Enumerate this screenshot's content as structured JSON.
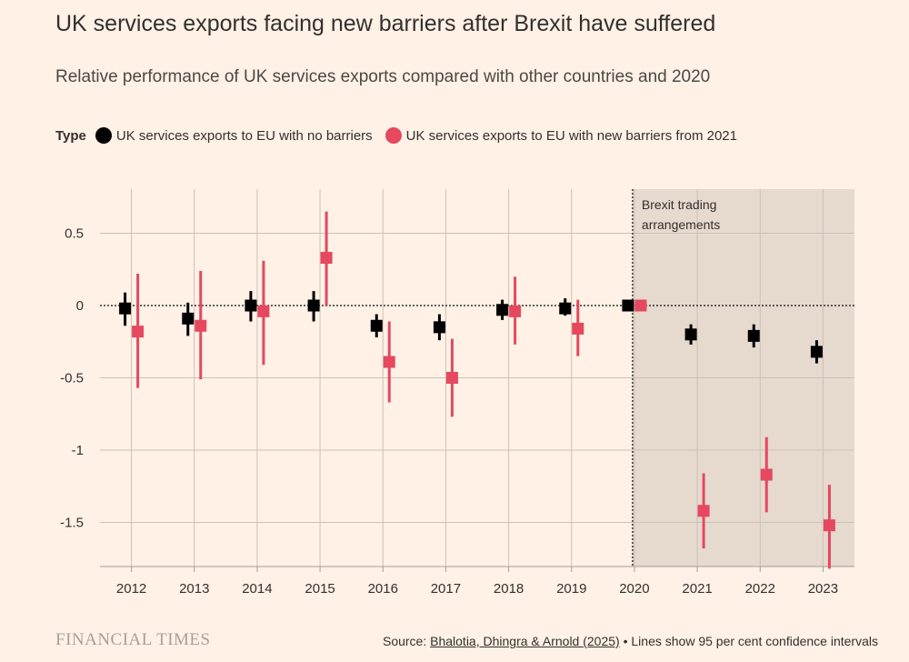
{
  "header": {
    "title": "UK services exports facing new barriers after Brexit have suffered",
    "subtitle": "Relative performance of UK services exports compared with other countries and 2020"
  },
  "legend": {
    "label": "Type",
    "items": [
      {
        "name": "UK services exports to EU with no barriers",
        "color": "#000000"
      },
      {
        "name": "UK services exports to EU with new barriers from 2021",
        "color": "#e5485f"
      }
    ]
  },
  "chart_data": {
    "type": "scatter",
    "x": [
      "2012",
      "2013",
      "2014",
      "2015",
      "2016",
      "2017",
      "2018",
      "2019",
      "2020",
      "2021",
      "2022",
      "2023"
    ],
    "series": [
      {
        "name": "UK services exports to EU with no barriers",
        "color": "#000000",
        "values": [
          -0.02,
          -0.09,
          0.0,
          0.0,
          -0.14,
          -0.15,
          -0.03,
          -0.02,
          0.0,
          -0.2,
          -0.21,
          -0.32
        ],
        "ci_low": [
          -0.14,
          -0.21,
          -0.11,
          -0.11,
          -0.22,
          -0.24,
          -0.1,
          -0.07,
          0.0,
          -0.27,
          -0.29,
          -0.4
        ],
        "ci_high": [
          0.09,
          0.02,
          0.1,
          0.1,
          -0.06,
          -0.06,
          0.04,
          0.05,
          0.0,
          -0.13,
          -0.13,
          -0.24
        ]
      },
      {
        "name": "UK services exports to EU with new barriers from 2021",
        "color": "#e5485f",
        "values": [
          -0.18,
          -0.14,
          -0.04,
          0.33,
          -0.39,
          -0.5,
          -0.04,
          -0.16,
          0.0,
          -1.42,
          -1.17,
          -1.52
        ],
        "ci_low": [
          -0.57,
          -0.51,
          -0.41,
          0.0,
          -0.67,
          -0.77,
          -0.27,
          -0.35,
          0.0,
          -1.68,
          -1.43,
          -1.82
        ],
        "ci_high": [
          0.22,
          0.24,
          0.31,
          0.65,
          -0.11,
          -0.23,
          0.2,
          0.04,
          0.0,
          -1.16,
          -0.91,
          -1.24
        ]
      }
    ],
    "yticks": [
      0.5,
      0,
      -0.5,
      -1,
      -1.5
    ],
    "ytick_labels": [
      "0.5",
      "0",
      "-0.5",
      "-1",
      "-1.5"
    ],
    "ylim": [
      -1.8,
      0.8
    ],
    "annotation": {
      "line1": "Brexit trading",
      "line2": "arrangements",
      "shaded_from": "2020",
      "shaded_to": "2023"
    },
    "title": "",
    "xlabel": "",
    "ylabel": ""
  },
  "footer": {
    "brand": "FINANCIAL TIMES",
    "source_prefix": "Source: ",
    "source_link": "Bhalotia, Dhingra & Arnold (2025)",
    "source_suffix": " • Lines show 95 per cent confidence intervals"
  }
}
